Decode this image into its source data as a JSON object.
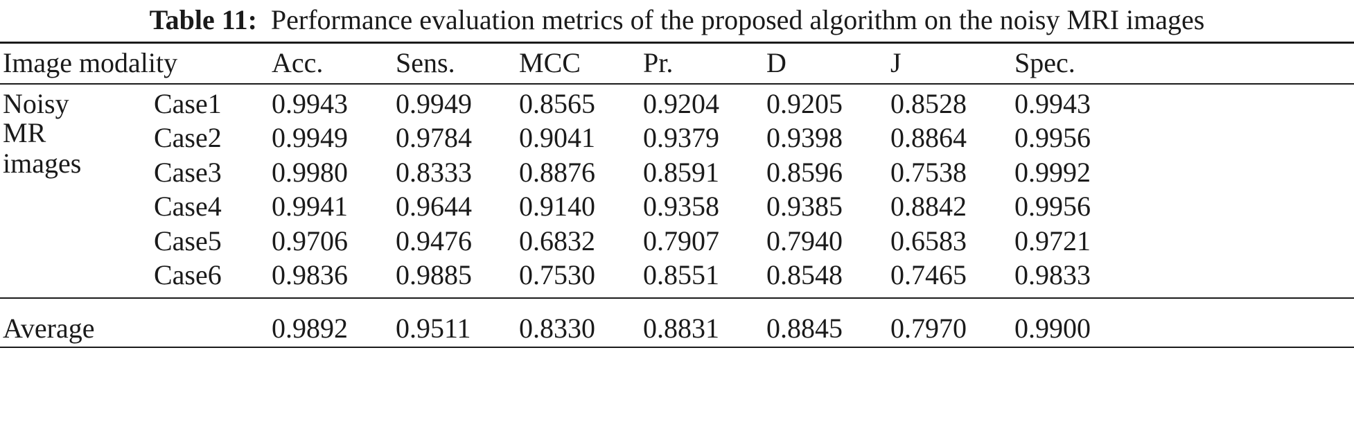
{
  "caption": {
    "label": "Table 11:",
    "text": "Performance evaluation metrics of the proposed algorithm on the noisy MRI images"
  },
  "header": {
    "image_modality": "Image modality",
    "columns": [
      "Acc.",
      "Sens.",
      "MCC",
      "Pr.",
      "D",
      "J",
      "Spec."
    ]
  },
  "group": {
    "label_lines": [
      "Noisy",
      "MR",
      "images"
    ],
    "rows": [
      {
        "case": "Case1",
        "values": [
          "0.9943",
          "0.9949",
          "0.8565",
          "0.9204",
          "0.9205",
          "0.8528",
          "0.9943"
        ]
      },
      {
        "case": "Case2",
        "values": [
          "0.9949",
          "0.9784",
          "0.9041",
          "0.9379",
          "0.9398",
          "0.8864",
          "0.9956"
        ]
      },
      {
        "case": "Case3",
        "values": [
          "0.9980",
          "0.8333",
          "0.8876",
          "0.8591",
          "0.8596",
          "0.7538",
          "0.9992"
        ]
      },
      {
        "case": "Case4",
        "values": [
          "0.9941",
          "0.9644",
          "0.9140",
          "0.9358",
          "0.9385",
          "0.8842",
          "0.9956"
        ]
      },
      {
        "case": "Case5",
        "values": [
          "0.9706",
          "0.9476",
          "0.6832",
          "0.7907",
          "0.7940",
          "0.6583",
          "0.9721"
        ]
      },
      {
        "case": "Case6",
        "values": [
          "0.9836",
          "0.9885",
          "0.7530",
          "0.8551",
          "0.8548",
          "0.7465",
          "0.9833"
        ]
      }
    ]
  },
  "average": {
    "label": "Average",
    "values": [
      "0.9892",
      "0.9511",
      "0.8330",
      "0.8831",
      "0.8845",
      "0.7970",
      "0.9900"
    ]
  }
}
